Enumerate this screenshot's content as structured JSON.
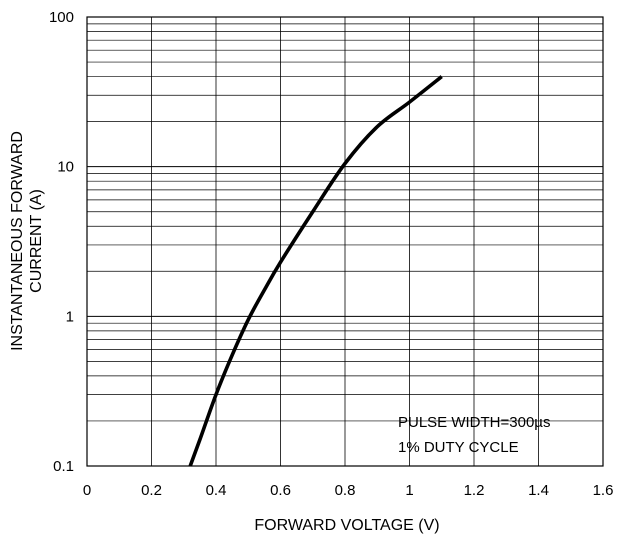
{
  "chart_data": {
    "type": "line",
    "title": "",
    "xlabel": "FORWARD VOLTAGE (V)",
    "ylabel": "INSTANTANEOUS FORWARD CURRENT (A)",
    "ylabel_lines": [
      "INSTANTANEOUS FORWARD",
      "CURRENT (A)"
    ],
    "xlim": [
      0,
      1.6
    ],
    "ylim": [
      0.1,
      100
    ],
    "yscale": "log",
    "grid": true,
    "legend": "none",
    "x_ticks": [
      "0",
      "0.2",
      "0.4",
      "0.6",
      "0.8",
      "1",
      "1.2",
      "1.4",
      "1.6"
    ],
    "y_ticks": [
      "0.1",
      "1",
      "10",
      "100"
    ],
    "annotations": [
      "PULSE WIDTH=300µs",
      "1% DUTY CYCLE"
    ],
    "series": [
      {
        "x": [
          0.32,
          0.35,
          0.4,
          0.45,
          0.5,
          0.55,
          0.6,
          0.7,
          0.8,
          0.9,
          1.0,
          1.1
        ],
        "y": [
          0.1,
          0.15,
          0.3,
          0.55,
          0.95,
          1.5,
          2.3,
          5.0,
          10.5,
          18.5,
          27.0,
          40.0
        ]
      }
    ],
    "colors": {
      "line": "#000000",
      "grid": "#000000",
      "background": "#ffffff"
    }
  }
}
